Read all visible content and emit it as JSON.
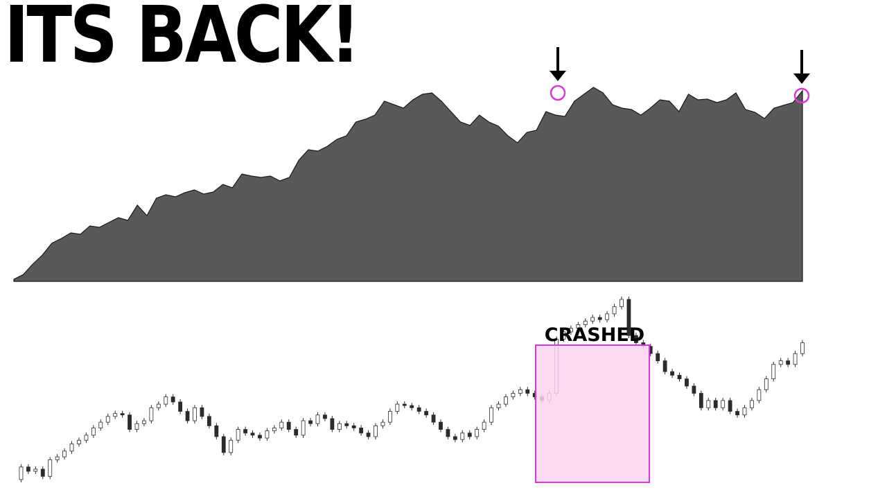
{
  "headline": "ITS BACK!",
  "colors": {
    "area_fill": "#595959",
    "area_stroke": "#1a1a1a",
    "candle": "#2b2b2b",
    "highlight_stroke": "#d63ad6",
    "highlight_fill": "#fcd3f1",
    "arrow": "#000000"
  },
  "chart_data": [
    {
      "type": "area",
      "series": [
        {
          "values": [
            3,
            10,
            25,
            38,
            55,
            62,
            70,
            68,
            80,
            78,
            85,
            92,
            88,
            110,
            95,
            120,
            125,
            122,
            128,
            132,
            126,
            129,
            140,
            135,
            155,
            152,
            150,
            152,
            145,
            150,
            175,
            190,
            188,
            195,
            205,
            210,
            230,
            234,
            240,
            260,
            255,
            250,
            262,
            270,
            272,
            260,
            245,
            230,
            225,
            240,
            230,
            224,
            210,
            200,
            215,
            218,
            245,
            240,
            238,
            260,
            270,
            280,
            272,
            255,
            250,
            248,
            240,
            250,
            262,
            260,
            245,
            270,
            262,
            263,
            258,
            262,
            272,
            248,
            244,
            235,
            250,
            254,
            258,
            275
          ]
        }
      ],
      "ylim": [
        0,
        280
      ],
      "annotations": [
        "peak-marker-1",
        "peak-marker-2"
      ]
    },
    {
      "type": "candlestick",
      "series": [
        {
          "values": [
            0.5,
            18,
            12,
            15,
            5,
            28,
            32,
            40,
            50,
            55,
            62,
            72,
            80,
            88,
            92,
            90,
            70,
            78,
            82,
            100,
            105,
            115,
            108,
            95,
            82,
            100,
            88,
            75,
            60,
            38,
            55,
            70,
            65,
            62,
            58,
            68,
            72,
            80,
            70,
            62,
            82,
            78,
            90,
            85,
            70,
            78,
            75,
            72,
            65,
            60,
            75,
            80,
            95,
            105,
            103,
            100,
            95,
            90,
            80,
            70,
            60,
            56,
            65,
            60,
            70,
            80,
            100,
            105,
            115,
            120,
            125,
            120,
            115,
            110,
            120,
            195,
            205,
            210,
            215,
            220,
            225,
            222,
            230,
            240,
            250,
            200,
            190,
            185,
            175,
            165,
            150,
            145,
            140,
            130,
            120,
            100,
            110,
            100,
            110,
            95,
            90,
            100,
            110,
            125,
            140,
            160,
            165,
            160,
            175,
            190
          ]
        }
      ],
      "annotations": [
        "CRASHED"
      ]
    }
  ]
}
